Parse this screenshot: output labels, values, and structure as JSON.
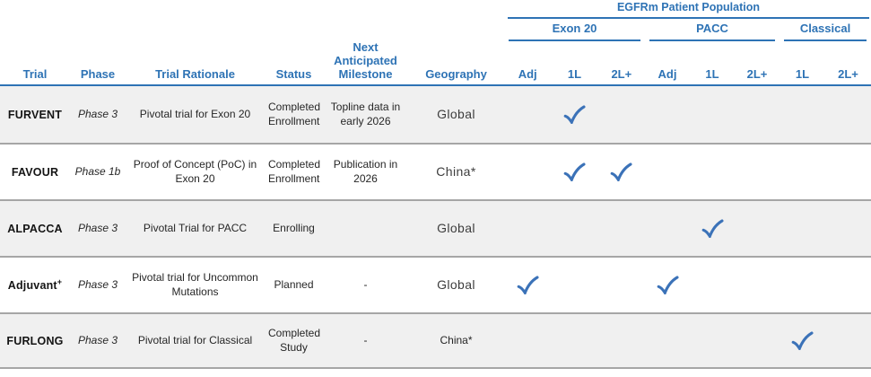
{
  "header": {
    "population_title": "EGFRm Patient Population",
    "groups": [
      {
        "label": "Exon 20",
        "subcols": [
          "Adj",
          "1L",
          "2L+"
        ]
      },
      {
        "label": "PACC",
        "subcols": [
          "Adj",
          "1L",
          "2L+"
        ]
      },
      {
        "label": "Classical",
        "subcols": [
          "1L",
          "2L+"
        ]
      }
    ],
    "columns": {
      "trial": "Trial",
      "phase": "Phase",
      "rationale": "Trial Rationale",
      "status": "Status",
      "milestone": "Next Anticipated Milestone",
      "geography": "Geography"
    }
  },
  "rows": [
    {
      "trial": "FURVENT",
      "trial_sup": "",
      "phase": "Phase 3",
      "rationale": "Pivotal trial for Exon 20",
      "status": "Completed Enrollment",
      "milestone": "Topline data in early 2026",
      "geography": "Global",
      "geo_variant": "gothic",
      "checks": {
        "e20_adj": false,
        "e20_1l": true,
        "e20_2l": false,
        "pacc_adj": false,
        "pacc_1l": false,
        "pacc_2l": false,
        "cls_1l": false,
        "cls_2l": false
      }
    },
    {
      "trial": "FAVOUR",
      "trial_sup": "",
      "phase": "Phase 1b",
      "rationale": "Proof of Concept (PoC) in Exon 20",
      "status": "Completed Enrollment",
      "milestone": "Publication in 2026",
      "geography": "China*",
      "geo_variant": "gothic",
      "checks": {
        "e20_adj": false,
        "e20_1l": true,
        "e20_2l": true,
        "pacc_adj": false,
        "pacc_1l": false,
        "pacc_2l": false,
        "cls_1l": false,
        "cls_2l": false
      }
    },
    {
      "trial": "ALPACCA",
      "trial_sup": "",
      "phase": "Phase 3",
      "rationale": "Pivotal Trial for PACC",
      "status": "Enrolling",
      "milestone": "",
      "geography": "Global",
      "geo_variant": "gothic",
      "checks": {
        "e20_adj": false,
        "e20_1l": false,
        "e20_2l": false,
        "pacc_adj": false,
        "pacc_1l": true,
        "pacc_2l": false,
        "cls_1l": false,
        "cls_2l": false
      }
    },
    {
      "trial": "Adjuvant",
      "trial_sup": "+",
      "phase": "Phase 3",
      "rationale": "Pivotal trial for Uncommon Mutations",
      "status": "Planned",
      "milestone": "-",
      "geography": "Global",
      "geo_variant": "gothic",
      "checks": {
        "e20_adj": true,
        "e20_1l": false,
        "e20_2l": false,
        "pacc_adj": true,
        "pacc_1l": false,
        "pacc_2l": false,
        "cls_1l": false,
        "cls_2l": false
      }
    },
    {
      "trial": "FURLONG",
      "trial_sup": "",
      "phase": "Phase 3",
      "rationale": "Pivotal trial for Classical",
      "status": "Completed Study",
      "milestone": "-",
      "geography": "China*",
      "geo_variant": "plain",
      "checks": {
        "e20_adj": false,
        "e20_1l": false,
        "e20_2l": false,
        "pacc_adj": false,
        "pacc_1l": false,
        "pacc_2l": false,
        "cls_1l": true,
        "cls_2l": false
      }
    }
  ],
  "colors": {
    "header_blue": "#2e73b5",
    "check_blue": "#3b72b8",
    "row_alt_bg": "#f0f0f0",
    "separator_gray": "#a6a6a6"
  }
}
